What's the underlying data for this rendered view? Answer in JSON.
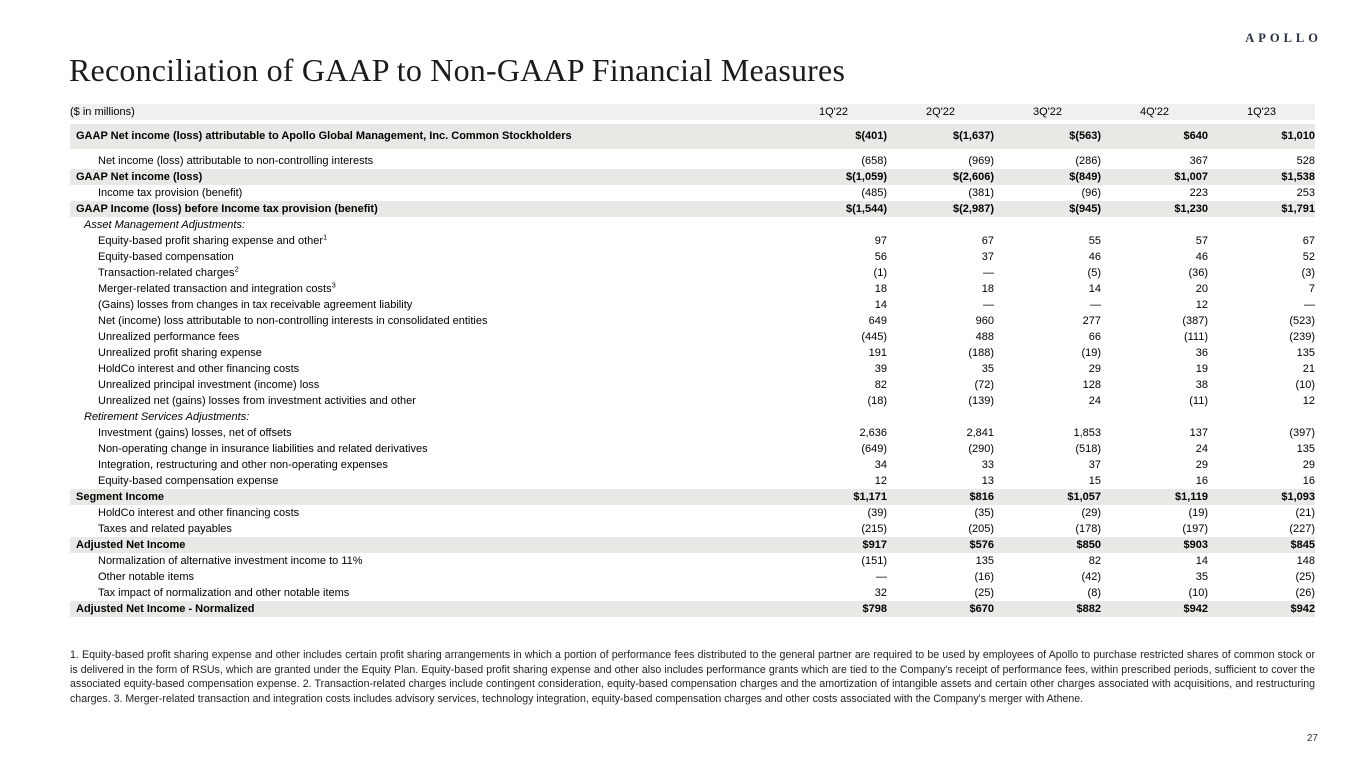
{
  "header": {
    "logo": "APOLLO",
    "title": "Reconciliation of GAAP to Non-GAAP Financial Measures"
  },
  "table": {
    "unit_label": "($ in millions)",
    "columns": [
      "1Q'22",
      "2Q'22",
      "3Q'22",
      "4Q'22",
      "1Q'23"
    ],
    "rows": [
      {
        "type": "emphasis",
        "label": "GAAP Net income (loss) attributable to Apollo Global Management, Inc. Common Stockholders",
        "values": [
          "$(401)",
          "$(1,637)",
          "$(563)",
          "$640",
          "$1,010"
        ]
      },
      {
        "type": "spacer"
      },
      {
        "type": "data",
        "label": "Net income (loss) attributable to non-controlling interests",
        "values": [
          "(658)",
          "(969)",
          "(286)",
          "367",
          "528"
        ]
      },
      {
        "type": "emphasis",
        "label": "GAAP Net income (loss)",
        "values": [
          "$(1,059)",
          "$(2,606)",
          "$(849)",
          "$1,007",
          "$1,538"
        ]
      },
      {
        "type": "data",
        "label": "Income tax provision (benefit)",
        "values": [
          "(485)",
          "(381)",
          "(96)",
          "223",
          "253"
        ]
      },
      {
        "type": "emphasis",
        "label": "GAAP Income (loss) before Income tax provision (benefit)",
        "values": [
          "$(1,544)",
          "$(2,987)",
          "$(945)",
          "$1,230",
          "$1,791"
        ]
      },
      {
        "type": "section",
        "label": "Asset Management Adjustments:"
      },
      {
        "type": "data",
        "label": "Equity-based profit sharing expense and other",
        "sup": "1",
        "values": [
          "97",
          "67",
          "55",
          "57",
          "67"
        ]
      },
      {
        "type": "data",
        "label": "Equity-based compensation",
        "values": [
          "56",
          "37",
          "46",
          "46",
          "52"
        ]
      },
      {
        "type": "data",
        "label": "Transaction-related charges",
        "sup": "2",
        "values": [
          "(1)",
          "—",
          "(5)",
          "(36)",
          "(3)"
        ]
      },
      {
        "type": "data",
        "label": "Merger-related transaction and integration costs",
        "sup": "3",
        "values": [
          "18",
          "18",
          "14",
          "20",
          "7"
        ]
      },
      {
        "type": "data",
        "label": "(Gains) losses from changes in tax receivable agreement liability",
        "values": [
          "14",
          "—",
          "—",
          "12",
          "—"
        ]
      },
      {
        "type": "data",
        "label": "Net (income) loss attributable to non-controlling interests in consolidated entities",
        "values": [
          "649",
          "960",
          "277",
          "(387)",
          "(523)"
        ]
      },
      {
        "type": "data",
        "label": "Unrealized performance fees",
        "values": [
          "(445)",
          "488",
          "66",
          "(111)",
          "(239)"
        ]
      },
      {
        "type": "data",
        "label": "Unrealized profit sharing expense",
        "values": [
          "191",
          "(188)",
          "(19)",
          "36",
          "135"
        ]
      },
      {
        "type": "data",
        "label": "HoldCo interest and other financing costs",
        "values": [
          "39",
          "35",
          "29",
          "19",
          "21"
        ]
      },
      {
        "type": "data",
        "label": "Unrealized principal investment (income) loss",
        "values": [
          "82",
          "(72)",
          "128",
          "38",
          "(10)"
        ]
      },
      {
        "type": "data",
        "label": "Unrealized net (gains) losses from investment activities and other",
        "values": [
          "(18)",
          "(139)",
          "24",
          "(11)",
          "12"
        ]
      },
      {
        "type": "section",
        "label": "Retirement Services Adjustments:"
      },
      {
        "type": "data",
        "label": "Investment (gains) losses, net of offsets",
        "values": [
          "2,636",
          "2,841",
          "1,853",
          "137",
          "(397)"
        ]
      },
      {
        "type": "data",
        "label": "Non-operating change in insurance liabilities and related derivatives",
        "values": [
          "(649)",
          "(290)",
          "(518)",
          "24",
          "135"
        ]
      },
      {
        "type": "data",
        "label": "Integration, restructuring and other non-operating expenses",
        "values": [
          "34",
          "33",
          "37",
          "29",
          "29"
        ]
      },
      {
        "type": "data",
        "label": "Equity-based compensation expense",
        "values": [
          "12",
          "13",
          "15",
          "16",
          "16"
        ]
      },
      {
        "type": "emphasis",
        "label": "Segment Income",
        "values": [
          "$1,171",
          "$816",
          "$1,057",
          "$1,119",
          "$1,093"
        ]
      },
      {
        "type": "data",
        "label": "HoldCo interest and other financing costs",
        "values": [
          "(39)",
          "(35)",
          "(29)",
          "(19)",
          "(21)"
        ]
      },
      {
        "type": "data",
        "label": "Taxes and related payables",
        "values": [
          "(215)",
          "(205)",
          "(178)",
          "(197)",
          "(227)"
        ]
      },
      {
        "type": "emphasis",
        "label": "Adjusted Net Income",
        "values": [
          "$917",
          "$576",
          "$850",
          "$903",
          "$845"
        ]
      },
      {
        "type": "data",
        "label": "Normalization of alternative investment income to 11%",
        "values": [
          "(151)",
          "135",
          "82",
          "14",
          "148"
        ]
      },
      {
        "type": "data",
        "label": "Other notable items",
        "values": [
          "—",
          "(16)",
          "(42)",
          "35",
          "(25)"
        ]
      },
      {
        "type": "data",
        "label": "Tax impact of normalization and other notable items",
        "values": [
          "32",
          "(25)",
          "(8)",
          "(10)",
          "(26)"
        ]
      },
      {
        "type": "emphasis",
        "label": "Adjusted Net Income - Normalized",
        "values": [
          "$798",
          "$670",
          "$882",
          "$942",
          "$942"
        ]
      }
    ]
  },
  "footnote": "1. Equity-based profit sharing expense and other includes certain profit sharing arrangements in which a portion of performance fees distributed to the general partner are required to be used by employees of Apollo to purchase restricted shares of common stock or is delivered in the form of RSUs, which are granted under the Equity Plan. Equity-based profit sharing expense and other also includes performance grants which are tied to the Company's receipt of performance fees, within prescribed periods, sufficient to cover the associated equity-based compensation expense. 2. Transaction-related charges include contingent consideration, equity-based compensation charges and the amortization of intangible assets and certain other charges associated with acquisitions, and restructuring charges. 3. Merger-related transaction and integration costs includes advisory services, technology integration, equity-based compensation charges and other costs associated with the Company's merger with Athene.",
  "page_number": "27"
}
